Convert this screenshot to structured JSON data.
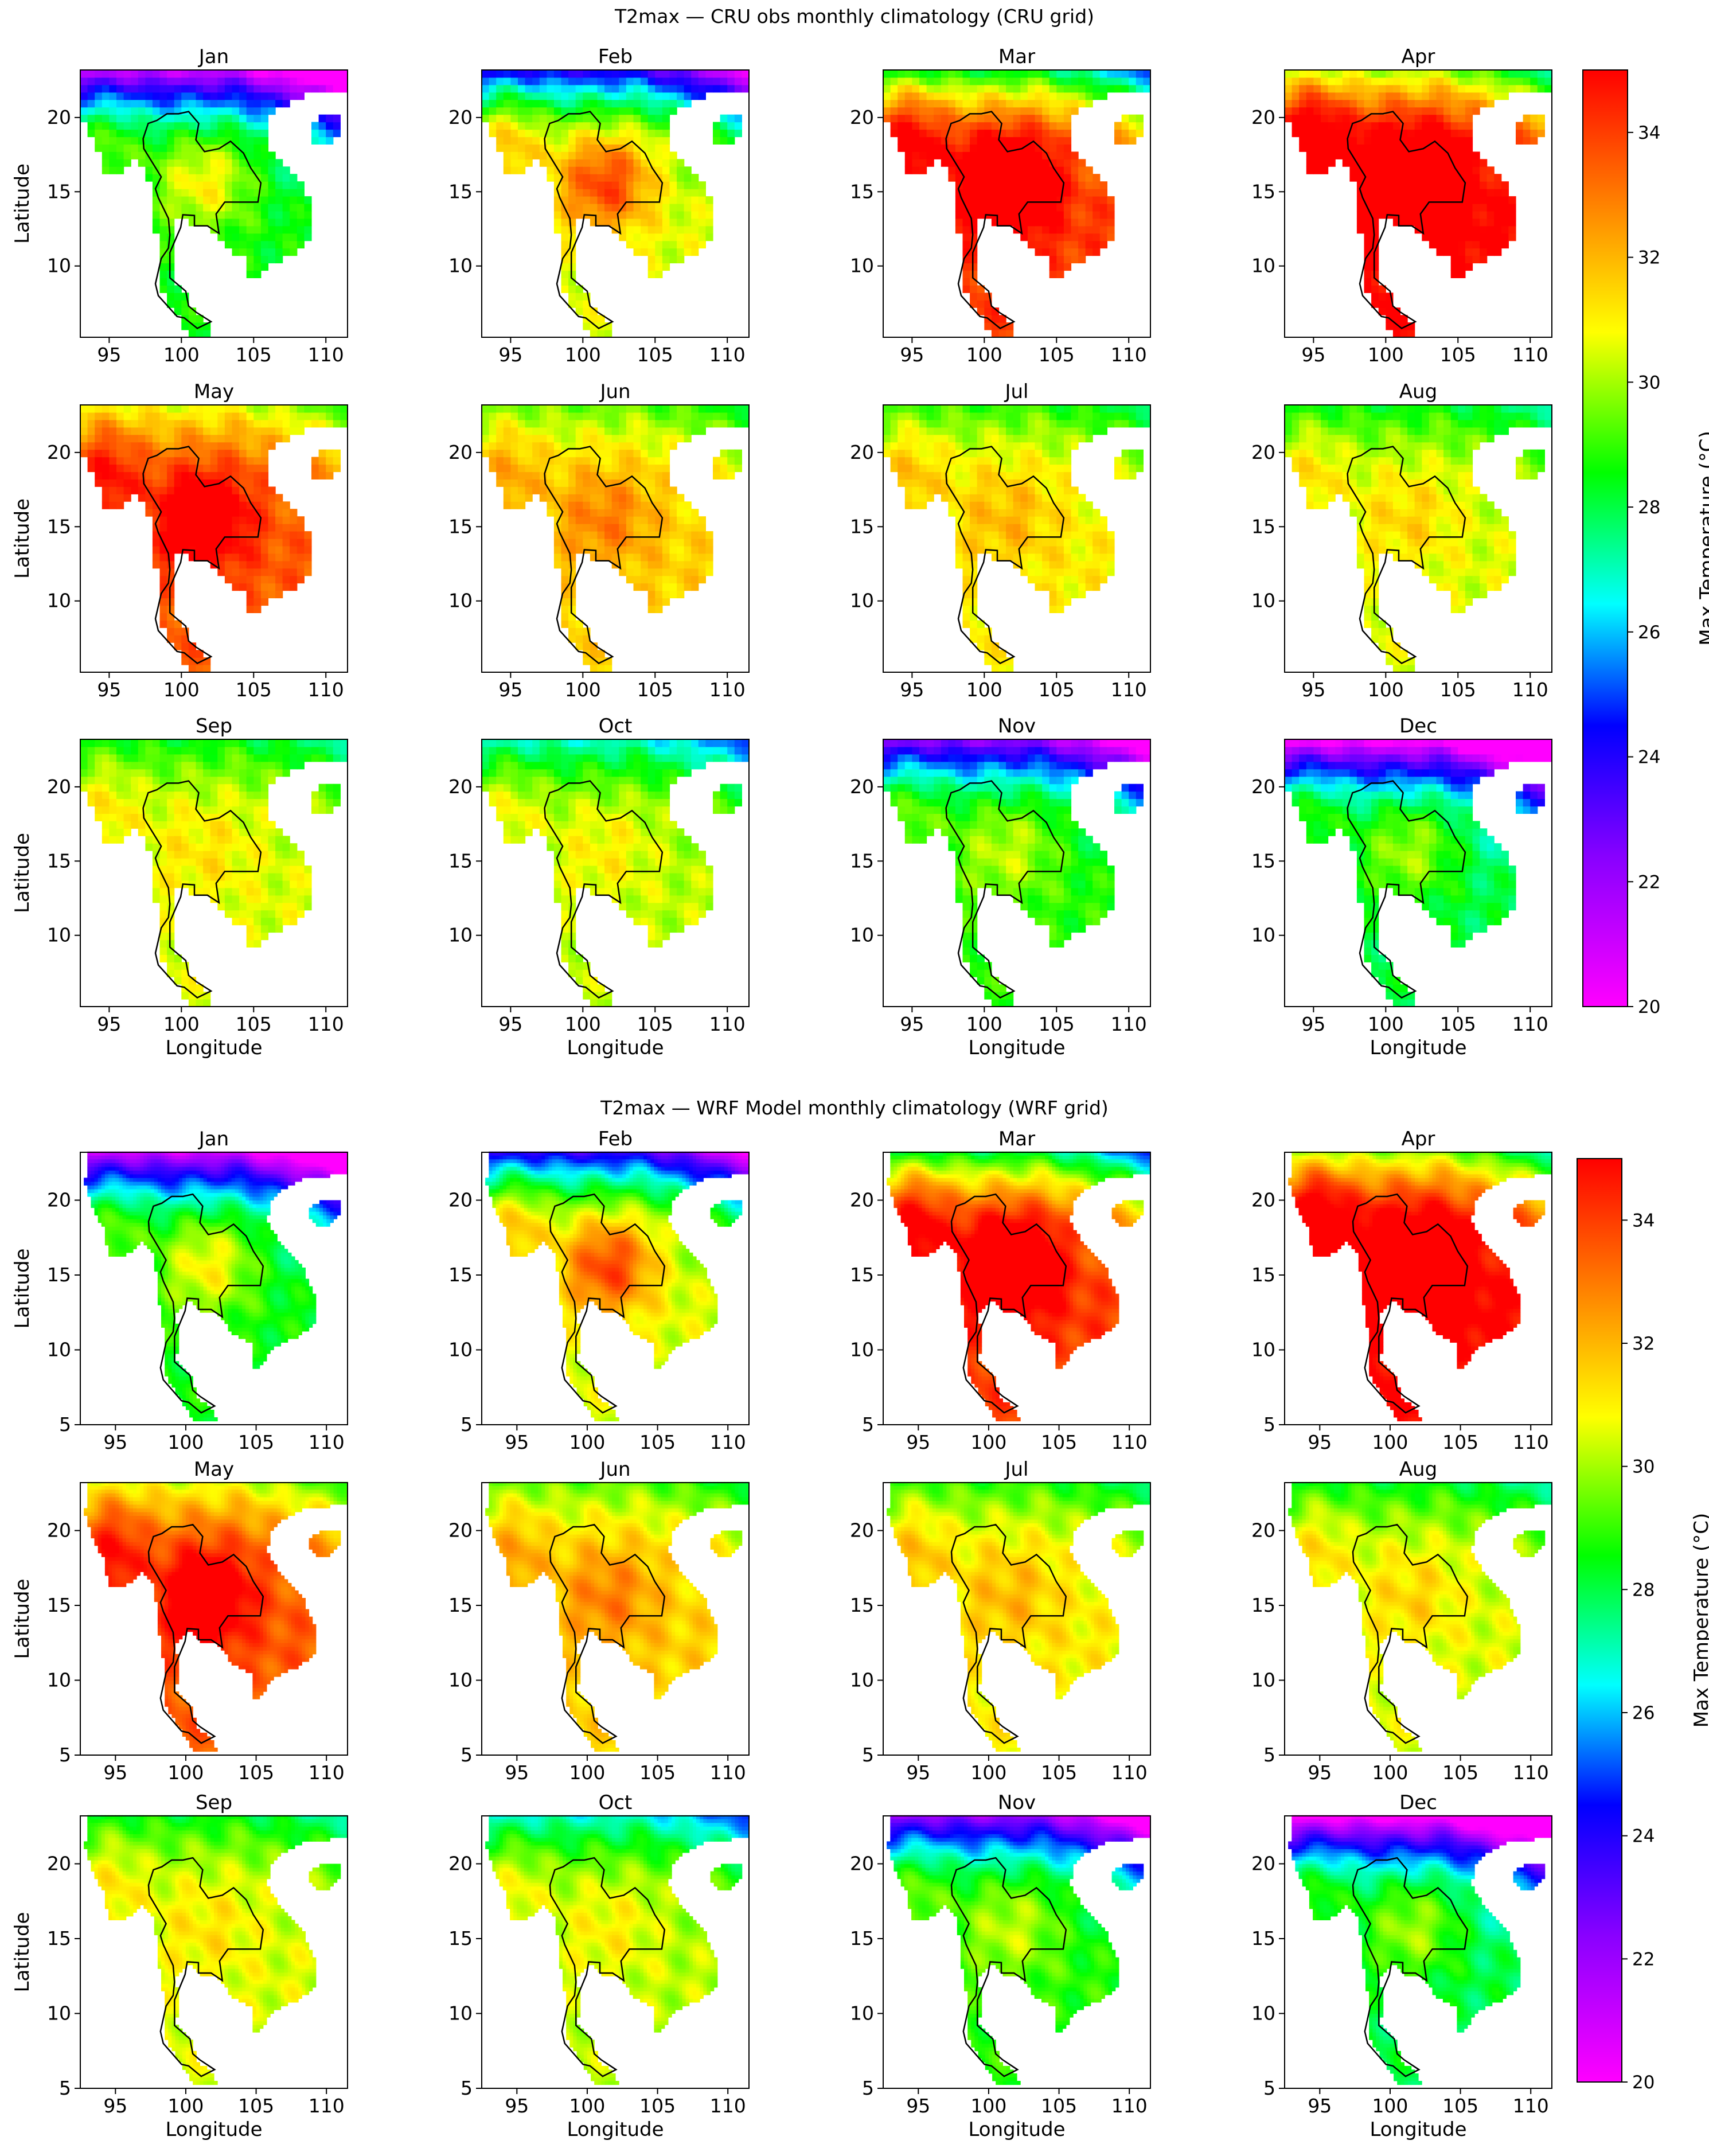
{
  "figures": [
    {
      "id": "cru",
      "title": "T2max — CRU obs monthly climatology (CRU grid)",
      "panel_titles": [
        "Jan",
        "Feb",
        "Mar",
        "Apr",
        "May",
        "Jun",
        "Jul",
        "Aug",
        "Sep",
        "Oct",
        "Nov",
        "Dec"
      ],
      "xlabel": "Longitude",
      "ylabel": "Latitude",
      "x_ticks": [
        "95",
        "100",
        "105",
        "110"
      ],
      "y_ticks": [
        "20",
        "15",
        "10"
      ],
      "colorbar_label": "Max Temperature (°C)",
      "colorbar_ticks": [
        "20",
        "22",
        "24",
        "26",
        "28",
        "30",
        "32",
        "34"
      ]
    },
    {
      "id": "wrf",
      "title": "T2max — WRF Model monthly climatology (WRF grid)",
      "panel_titles": [
        "Jan",
        "Feb",
        "Mar",
        "Apr",
        "May",
        "Jun",
        "Jul",
        "Aug",
        "Sep",
        "Oct",
        "Nov",
        "Dec"
      ],
      "xlabel": "Longitude",
      "ylabel": "Latitude",
      "x_ticks": [
        "95",
        "100",
        "105",
        "110"
      ],
      "y_ticks": [
        "20",
        "15",
        "10",
        "5"
      ],
      "colorbar_label": "Max Temperature (°C)",
      "colorbar_ticks": [
        "20",
        "22",
        "24",
        "26",
        "28",
        "30",
        "32",
        "34"
      ]
    }
  ],
  "chart_data": [
    {
      "type": "heatmap",
      "title": "T2max — CRU obs monthly climatology (CRU grid)",
      "panels": [
        "Jan",
        "Feb",
        "Mar",
        "Apr",
        "May",
        "Jun",
        "Jul",
        "Aug",
        "Sep",
        "Oct",
        "Nov",
        "Dec"
      ],
      "xlabel": "Longitude",
      "ylabel": "Latitude",
      "xlim": [
        93,
        111.5
      ],
      "ylim": [
        5.2,
        23.2
      ],
      "colorbar": {
        "label": "Max Temperature (°C)",
        "range": [
          20,
          35
        ],
        "colormap": "gist_rainbow_r"
      },
      "approx_mean_values": {
        "Jan": 28.5,
        "Feb": 30,
        "Mar": 33,
        "Apr": 34,
        "May": 33,
        "Jun": 31,
        "Jul": 30.5,
        "Aug": 30,
        "Sep": 30,
        "Oct": 30,
        "Nov": 28.5,
        "Dec": 27.5
      },
      "grid": false
    },
    {
      "type": "heatmap",
      "title": "T2max — WRF Model monthly climatology (WRF grid)",
      "panels": [
        "Jan",
        "Feb",
        "Mar",
        "Apr",
        "May",
        "Jun",
        "Jul",
        "Aug",
        "Sep",
        "Oct",
        "Nov",
        "Dec"
      ],
      "xlabel": "Longitude",
      "ylabel": "Latitude",
      "xlim": [
        92.5,
        111.5
      ],
      "ylim": [
        5,
        23.2
      ],
      "colorbar": {
        "label": "Max Temperature (°C)",
        "range": [
          20,
          35
        ],
        "colormap": "gist_rainbow_r"
      },
      "approx_mean_values": {
        "Jan": 29,
        "Feb": 31,
        "Mar": 34,
        "Apr": 35,
        "May": 34,
        "Jun": 32,
        "Jul": 31,
        "Aug": 31,
        "Sep": 31,
        "Oct": 30,
        "Nov": 28.5,
        "Dec": 27.5
      },
      "grid": false
    }
  ]
}
